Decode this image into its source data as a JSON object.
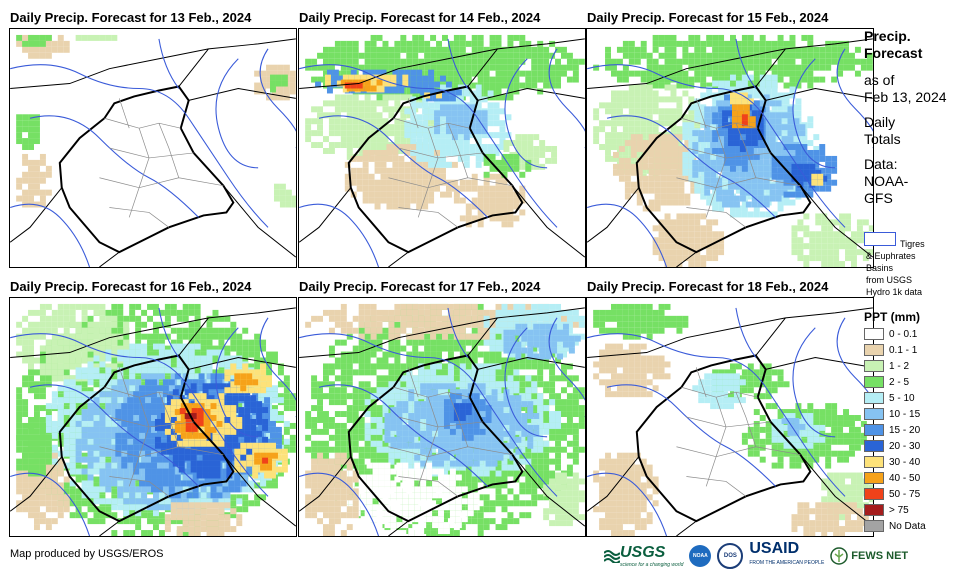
{
  "panels": [
    {
      "title": "Daily Precip. Forecast for 13 Feb., 2024",
      "intensity": "none"
    },
    {
      "title": "Daily Precip. Forecast for 14 Feb., 2024",
      "intensity": "north-heavy"
    },
    {
      "title": "Daily Precip. Forecast for 15 Feb., 2024",
      "intensity": "east-heavy"
    },
    {
      "title": "Daily Precip. Forecast for 16 Feb., 2024",
      "intensity": "central-heavy"
    },
    {
      "title": "Daily Precip. Forecast for 17 Feb., 2024",
      "intensity": "moderate"
    },
    {
      "title": "Daily Precip. Forecast for 18 Feb., 2024",
      "intensity": "light"
    }
  ],
  "sidebar": {
    "title_line1": "Precip.",
    "title_line2": "Forecast",
    "asof_line1": "as of",
    "asof_line2": "Feb 13, 2024",
    "daily_line1": "Daily",
    "daily_line2": "Totals",
    "data_line1": "Data:",
    "data_line2": "NOAA-",
    "data_line3": "GFS",
    "basin_line1": "Tigres",
    "basin_line2": "& Euphrates",
    "basin_line3": "Basins",
    "basin_line4": "from USGS",
    "basin_line5": "Hydro 1k data"
  },
  "legend": {
    "title": "PPT (mm)",
    "items": [
      {
        "label": "0 - 0.1",
        "color": "#ffffff"
      },
      {
        "label": "0.1 - 1",
        "color": "#e9d3ae"
      },
      {
        "label": "1 - 2",
        "color": "#c8f2b4"
      },
      {
        "label": "2 - 5",
        "color": "#76e064"
      },
      {
        "label": "5 - 10",
        "color": "#b5eef5"
      },
      {
        "label": "10 - 15",
        "color": "#86c3f2"
      },
      {
        "label": "15 - 20",
        "color": "#4f93e6"
      },
      {
        "label": "20 - 30",
        "color": "#2a64d6"
      },
      {
        "label": "30 - 40",
        "color": "#fde27a"
      },
      {
        "label": "40 - 50",
        "color": "#f6a21a"
      },
      {
        "label": "50 - 75",
        "color": "#f0421a"
      },
      {
        "label": "> 75",
        "color": "#a51d1d"
      },
      {
        "label": "No Data",
        "color": "#a3a3a3"
      }
    ]
  },
  "footer": {
    "credit": "Map produced by USGS/EROS",
    "logo_usgs": "USGS",
    "logo_usgs_tag": "science for a changing world",
    "logo_noaa": "NOAA",
    "logo_dos": "DOS",
    "logo_usaid": "USAID",
    "logo_usaid_tag": "FROM THE AMERICAN PEOPLE",
    "logo_fews": "FEWS NET"
  }
}
